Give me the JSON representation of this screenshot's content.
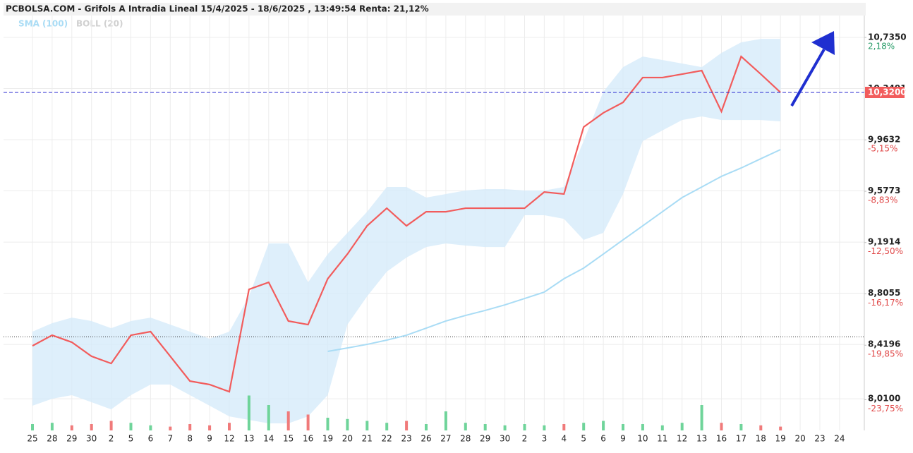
{
  "chart_data": {
    "type": "line",
    "title": "PCBOLSA.COM - Grifols A Intradia Lineal 15/4/2025 - 18/6/2025 , 13:49:54 Renta: 21,12%",
    "categories": [
      "25",
      "28",
      "29",
      "30",
      "2",
      "5",
      "6",
      "7",
      "8",
      "9",
      "12",
      "13",
      "14",
      "15",
      "16",
      "19",
      "20",
      "21",
      "22",
      "23",
      "26",
      "27",
      "28",
      "29",
      "30",
      "2",
      "3",
      "4",
      "5",
      "6",
      "9",
      "10",
      "11",
      "12",
      "13",
      "16",
      "17",
      "18",
      "19",
      "20",
      "23",
      "24"
    ],
    "series": [
      {
        "color": "#f25c5c",
        "values": [
          8.409,
          8.489,
          8.436,
          8.33,
          8.276,
          8.489,
          8.516,
          8.33,
          8.143,
          8.117,
          8.063,
          8.835,
          8.888,
          8.596,
          8.569,
          8.915,
          9.101,
          9.314,
          9.447,
          9.314,
          9.42,
          9.42,
          9.447,
          9.447,
          9.447,
          9.447,
          9.569,
          9.554,
          10.059,
          10.166,
          10.245,
          10.432,
          10.432,
          10.458,
          10.485,
          10.176,
          10.591,
          10.458,
          10.32,
          null,
          null,
          null
        ]
      },
      {
        "name": "SMA (100)",
        "color": "#a9dcf5",
        "values": [
          null,
          null,
          null,
          null,
          null,
          null,
          null,
          null,
          null,
          null,
          null,
          null,
          null,
          null,
          null,
          8.367,
          8.393,
          8.42,
          8.452,
          8.489,
          8.542,
          8.596,
          8.638,
          8.676,
          8.718,
          8.766,
          8.814,
          8.915,
          8.995,
          9.101,
          9.208,
          9.314,
          9.42,
          9.527,
          9.607,
          9.687,
          9.75,
          9.82,
          9.889,
          null,
          null,
          null
        ]
      }
    ],
    "band": {
      "name": "BOLL (20)",
      "color": "#d6ebfa",
      "upper": [
        8.516,
        8.58,
        8.622,
        8.596,
        8.542,
        8.596,
        8.622,
        8.569,
        8.516,
        8.463,
        8.516,
        8.782,
        9.181,
        9.181,
        8.888,
        9.101,
        9.261,
        9.42,
        9.607,
        9.607,
        9.527,
        9.554,
        9.58,
        9.591,
        9.591,
        9.58,
        9.58,
        9.607,
        9.953,
        10.325,
        10.511,
        10.591,
        10.565,
        10.538,
        10.511,
        10.618,
        10.698,
        10.724,
        10.724,
        null,
        null,
        null
      ],
      "lower": [
        7.957,
        8.01,
        8.037,
        7.984,
        7.93,
        8.037,
        8.117,
        8.117,
        8.037,
        7.957,
        7.877,
        7.85,
        7.824,
        7.824,
        7.877,
        8.037,
        8.569,
        8.782,
        8.968,
        9.075,
        9.154,
        9.181,
        9.165,
        9.154,
        9.154,
        9.394,
        9.394,
        9.367,
        9.208,
        9.261,
        9.554,
        9.953,
        10.033,
        10.112,
        10.139,
        10.112,
        10.112,
        10.112,
        10.102,
        null,
        null,
        null
      ]
    },
    "volume": {
      "up_color": "#6fd49a",
      "down_color": "#f07a7a",
      "values": [
        10,
        12,
        8,
        10,
        15,
        12,
        8,
        6,
        10,
        8,
        12,
        55,
        40,
        30,
        25,
        20,
        18,
        15,
        12,
        15,
        10,
        30,
        12,
        10,
        8,
        10,
        8,
        10,
        12,
        15,
        10,
        10,
        8,
        12,
        40,
        12,
        10,
        8,
        6,
        null,
        null,
        null
      ]
    },
    "last_price": {
      "value": 10.32,
      "label": "10,3200",
      "color": "#f25c5c"
    },
    "reference_line": 8.477,
    "ylim": [
      7.771,
      10.9
    ],
    "yticks": [
      {
        "value": 10.735,
        "label": "10,7350"
      },
      {
        "value": 10.3491,
        "label": "10,3491"
      },
      {
        "value": 9.9632,
        "label": "9,9632"
      },
      {
        "value": 9.5773,
        "label": "9,5773"
      },
      {
        "value": 9.1914,
        "label": "9,1914"
      },
      {
        "value": 8.8055,
        "label": "8,8055"
      },
      {
        "value": 8.4196,
        "label": "8,4196"
      },
      {
        "value": 8.01,
        "label": "8,0100"
      }
    ],
    "y2lim": [
      -25.95,
      3.75
    ],
    "y2ticks": [
      {
        "value": 2.18,
        "label": "2,18%"
      },
      {
        "value": -5.15,
        "label": "-5,15%"
      },
      {
        "value": -8.83,
        "label": "-8,83%"
      },
      {
        "value": -12.5,
        "label": "-12,50%"
      },
      {
        "value": -16.17,
        "label": "-16,17%"
      },
      {
        "value": -19.85,
        "label": "-19,85%"
      },
      {
        "value": -23.75,
        "label": "-23,75%"
      }
    ],
    "grid": true
  }
}
